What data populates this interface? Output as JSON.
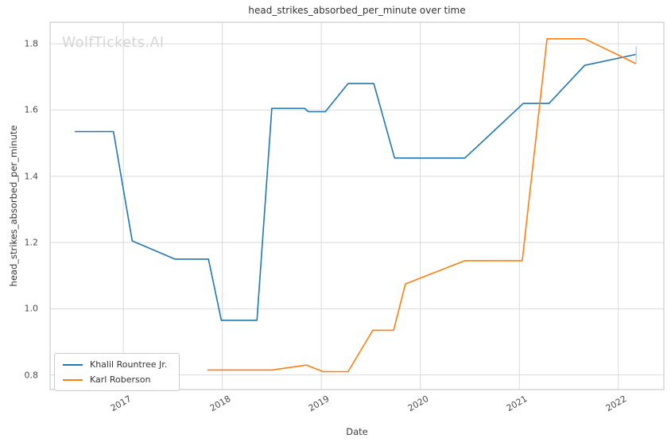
{
  "watermark": "WolfTickets.AI",
  "colors": {
    "background": "#ffffff",
    "grid": "#d9d9d9",
    "spine": "#cccccc",
    "series_blue": "#1f77b4",
    "series_orange": "#ff7f0e",
    "title_text": "#333333",
    "tick_text": "#4a4a4a",
    "watermark_text": "#d4d4d4"
  },
  "chart_data": {
    "type": "line",
    "title": "head_strikes_absorbed_per_minute over time",
    "xlabel": "Date",
    "ylabel": "head_strikes_absorbed_per_minute",
    "xlim": [
      2016.26,
      2022.46
    ],
    "ylim": [
      0.756,
      1.865
    ],
    "grid": true,
    "legend_position": "lower left",
    "x_ticks": [
      2017,
      2018,
      2019,
      2020,
      2021,
      2022
    ],
    "x_tick_labels": [
      "2017",
      "2018",
      "2019",
      "2020",
      "2021",
      "2022"
    ],
    "y_ticks": [
      0.8,
      1.0,
      1.2,
      1.4,
      1.6,
      1.8
    ],
    "y_tick_labels": [
      "0.8",
      "1.0",
      "1.2",
      "1.4",
      "1.6",
      "1.8"
    ],
    "series": [
      {
        "name": "Khalil Rountree Jr.",
        "color": "#1f77b4",
        "points": [
          [
            2016.51,
            1.535
          ],
          [
            2016.9,
            1.535
          ],
          [
            2017.09,
            1.205
          ],
          [
            2017.52,
            1.15
          ],
          [
            2017.86,
            1.15
          ],
          [
            2017.99,
            0.965
          ],
          [
            2018.35,
            0.965
          ],
          [
            2018.5,
            1.605
          ],
          [
            2018.83,
            1.605
          ],
          [
            2018.87,
            1.595
          ],
          [
            2019.04,
            1.595
          ],
          [
            2019.27,
            1.68
          ],
          [
            2019.53,
            1.68
          ],
          [
            2019.74,
            1.455
          ],
          [
            2020.45,
            1.455
          ],
          [
            2021.04,
            1.62
          ],
          [
            2021.3,
            1.62
          ],
          [
            2021.66,
            1.735
          ],
          [
            2022.18,
            1.768
          ]
        ]
      },
      {
        "name": "Karl Roberson",
        "color": "#ff7f0e",
        "points": [
          [
            2017.85,
            0.815
          ],
          [
            2018.5,
            0.815
          ],
          [
            2018.85,
            0.83
          ],
          [
            2019.02,
            0.81
          ],
          [
            2019.27,
            0.81
          ],
          [
            2019.52,
            0.935
          ],
          [
            2019.73,
            0.935
          ],
          [
            2019.85,
            1.075
          ],
          [
            2020.45,
            1.145
          ],
          [
            2021.03,
            1.145
          ],
          [
            2021.28,
            1.815
          ],
          [
            2021.66,
            1.815
          ],
          [
            2022.18,
            1.74
          ]
        ]
      }
    ],
    "annotations": {
      "end_cap": {
        "x": 2022.18,
        "y1": 1.742,
        "y2": 1.792,
        "color": "#9dc7e0"
      }
    }
  }
}
